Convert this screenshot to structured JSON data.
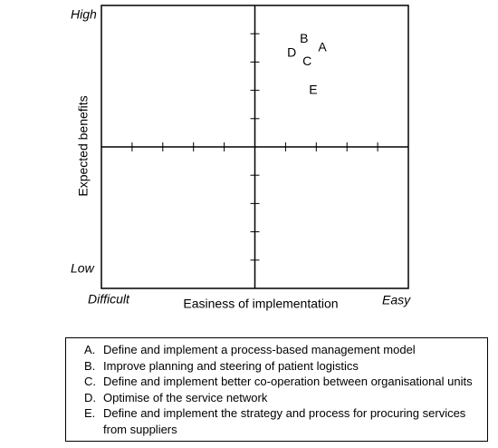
{
  "chart_data": {
    "type": "scatter",
    "x_label": "Easiness of implementation",
    "y_label": "Expected benefits",
    "x_low_label": "Difficult",
    "x_high_label": "Easy",
    "y_high_label": "High",
    "y_low_label": "Low",
    "xlim": [
      -5,
      5
    ],
    "ylim": [
      -5,
      5
    ],
    "xticks": [
      -4,
      -3,
      -2,
      -1,
      1,
      2,
      3,
      4
    ],
    "yticks": [
      -4,
      -3,
      -2,
      -1,
      1,
      2,
      3,
      4
    ],
    "point_labels": [
      "A",
      "B",
      "C",
      "D",
      "E"
    ],
    "x": [
      2.2,
      1.6,
      1.7,
      1.2,
      1.9
    ],
    "values": [
      3.5,
      3.8,
      3.0,
      3.3,
      2.0
    ]
  },
  "key": {
    "items": [
      {
        "marker": "A.",
        "text": "Define and implement a process-based management model"
      },
      {
        "marker": "B.",
        "text": "Improve planning and steering of patient logistics"
      },
      {
        "marker": "C.",
        "text": "Define and implement better co-operation between organisational units"
      },
      {
        "marker": "D.",
        "text": "Optimise of the service network"
      },
      {
        "marker": "E.",
        "text": "Define and implement the strategy and process for procuring services from suppliers"
      }
    ]
  }
}
